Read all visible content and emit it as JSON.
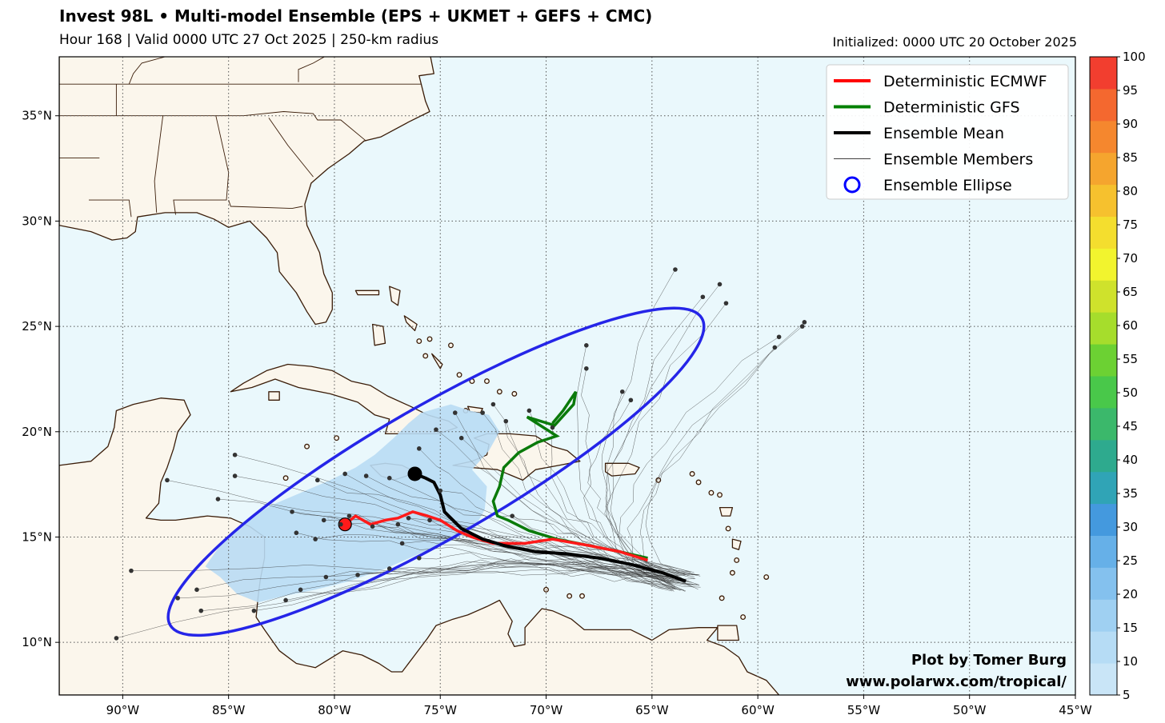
{
  "title": "Invest 98L • Multi-model Ensemble (EPS + UKMET + GEFS + CMC)",
  "subtitle": "Hour 168 | Valid 0000 UTC 27 Oct 2025 | 250-km radius",
  "initialized": "Initialized: 0000 UTC 20 October 2025",
  "map_data": {
    "lon_range": [
      -93,
      -45
    ],
    "lat_range": [
      7.5,
      37.8
    ],
    "lon_ticks": [
      "90°W",
      "85°W",
      "80°W",
      "75°W",
      "70°W",
      "65°W",
      "60°W",
      "55°W",
      "50°W",
      "45°W"
    ],
    "lat_ticks": [
      "10°N",
      "15°N",
      "20°N",
      "25°N",
      "30°N",
      "35°N"
    ],
    "grid": true,
    "colors": {
      "ocean": "#eaf8fc",
      "land": "#fbf6ec",
      "coast": "#3a1c08"
    },
    "deterministic_ecmwf": [
      [
        -65.2,
        13.9
      ],
      [
        -66.5,
        14.3
      ],
      [
        -68,
        14.6
      ],
      [
        -69.7,
        14.9
      ],
      [
        -71,
        14.7
      ],
      [
        -72.5,
        14.7
      ],
      [
        -73.5,
        15.0
      ],
      [
        -74.2,
        15.3
      ],
      [
        -75,
        15.8
      ],
      [
        -75.6,
        16.0
      ],
      [
        -76.3,
        16.2
      ],
      [
        -77,
        15.9
      ],
      [
        -77.6,
        15.8
      ],
      [
        -78.3,
        15.6
      ],
      [
        -79,
        16.0
      ],
      [
        -79.5,
        15.6
      ]
    ],
    "deterministic_gfs": [
      [
        -65.2,
        14.0
      ],
      [
        -66.5,
        14.3
      ],
      [
        -68,
        14.6
      ],
      [
        -69.5,
        14.9
      ],
      [
        -70.8,
        15.3
      ],
      [
        -71.8,
        15.8
      ],
      [
        -72.3,
        16.0
      ],
      [
        -72.5,
        16.7
      ],
      [
        -72.2,
        17.4
      ],
      [
        -72.0,
        18.3
      ],
      [
        -71.3,
        19.0
      ],
      [
        -70.4,
        19.5
      ],
      [
        -69.5,
        19.8
      ],
      [
        -70.9,
        20.7
      ],
      [
        -69.6,
        20.3
      ],
      [
        -68.7,
        21.3
      ],
      [
        -68.6,
        21.9
      ],
      [
        -69.2,
        21.0
      ],
      [
        -69.7,
        20.4
      ]
    ],
    "ensemble_mean": [
      [
        -63.4,
        12.9
      ],
      [
        -64.5,
        13.3
      ],
      [
        -66,
        13.7
      ],
      [
        -67.5,
        14.0
      ],
      [
        -69,
        14.2
      ],
      [
        -70.5,
        14.3
      ],
      [
        -72,
        14.6
      ],
      [
        -73,
        14.9
      ],
      [
        -74,
        15.4
      ],
      [
        -74.8,
        16.2
      ],
      [
        -75.0,
        17.0
      ],
      [
        -75.3,
        17.6
      ],
      [
        -75.7,
        17.8
      ],
      [
        -76.2,
        18.0
      ]
    ],
    "ensemble_ellipse": {
      "center": [
        -75.2,
        18.1
      ],
      "rx_deg": 14.5,
      "ry_deg": 3.1,
      "angle_deg": 30
    },
    "probability_shading_color": "#b9dcf4",
    "member_endpoints": [
      [
        -87.9,
        17.7
      ],
      [
        -90.3,
        10.2
      ],
      [
        -86.5,
        12.5
      ],
      [
        -86.3,
        11.5
      ],
      [
        -85.5,
        16.8
      ],
      [
        -84.7,
        18.9
      ],
      [
        -84.7,
        17.9
      ],
      [
        -83.8,
        11.5
      ],
      [
        -82,
        16.2
      ],
      [
        -80.8,
        17.7
      ],
      [
        -79.5,
        18.0
      ],
      [
        -78.5,
        17.9
      ],
      [
        -77.4,
        17.8
      ],
      [
        -76,
        19.2
      ],
      [
        -75.2,
        20.1
      ],
      [
        -74,
        19.7
      ],
      [
        -75,
        17.2
      ],
      [
        -74.3,
        20.9
      ],
      [
        -73,
        20.9
      ],
      [
        -72.5,
        21.3
      ],
      [
        -71.9,
        20.5
      ],
      [
        -70.8,
        21.0
      ],
      [
        -69.7,
        20.2
      ],
      [
        -68.1,
        23.0
      ],
      [
        -68.1,
        24.1
      ],
      [
        -66.4,
        21.9
      ],
      [
        -66,
        21.5
      ],
      [
        -63.9,
        27.7
      ],
      [
        -62.6,
        26.4
      ],
      [
        -61.8,
        27.0
      ],
      [
        -61.5,
        26.1
      ],
      [
        -59.2,
        24.0
      ],
      [
        -59,
        24.5
      ],
      [
        -57.8,
        25.2
      ],
      [
        -57.9,
        25.0
      ],
      [
        -80.9,
        14.9
      ],
      [
        -81.8,
        15.2
      ],
      [
        -80.5,
        15.8
      ],
      [
        -79.7,
        15.6
      ],
      [
        -78.2,
        15.5
      ],
      [
        -77,
        15.6
      ],
      [
        -76.8,
        14.7
      ],
      [
        -76,
        14.0
      ],
      [
        -77.4,
        13.5
      ],
      [
        -78.9,
        13.2
      ],
      [
        -80.4,
        13.1
      ],
      [
        -81.6,
        12.5
      ],
      [
        -82.3,
        12.0
      ],
      [
        -87.4,
        12.1
      ],
      [
        -89.6,
        13.4
      ],
      [
        -79.3,
        16.0
      ],
      [
        -76.5,
        15.9
      ],
      [
        -75.5,
        15.8
      ],
      [
        -71.6,
        16.0
      ]
    ]
  },
  "colorbar": {
    "ticks": [
      "5",
      "10",
      "15",
      "20",
      "25",
      "30",
      "35",
      "40",
      "45",
      "50",
      "55",
      "60",
      "65",
      "70",
      "75",
      "80",
      "85",
      "90",
      "95",
      "100"
    ],
    "colors": [
      "#c9e5f7",
      "#b6dcf5",
      "#9fd0f2",
      "#84c1ee",
      "#66b0e8",
      "#4499de",
      "#30a4b6",
      "#2eaa8e",
      "#3bb86b",
      "#49c84a",
      "#6cd133",
      "#a6dd2c",
      "#cfe22c",
      "#f2f42e",
      "#f4de2e",
      "#f6c12e",
      "#f5a52e",
      "#f5872e",
      "#f4682f",
      "#f23e2f"
    ]
  },
  "legend": [
    {
      "label": "Deterministic ECMWF",
      "color": "#ff0000",
      "icon": "line-thick"
    },
    {
      "label": "Deterministic GFS",
      "color": "#008000",
      "icon": "line-thick"
    },
    {
      "label": "Ensemble Mean",
      "color": "#000000",
      "icon": "line-thick"
    },
    {
      "label": "Ensemble Members",
      "color": "#000000",
      "icon": "line-thin"
    },
    {
      "label": "Ensemble Ellipse",
      "color": "#0000ff",
      "icon": "circle"
    }
  ],
  "credit_lines": [
    "Plot by Tomer Burg",
    "www.polarwx.com/tropical/"
  ]
}
